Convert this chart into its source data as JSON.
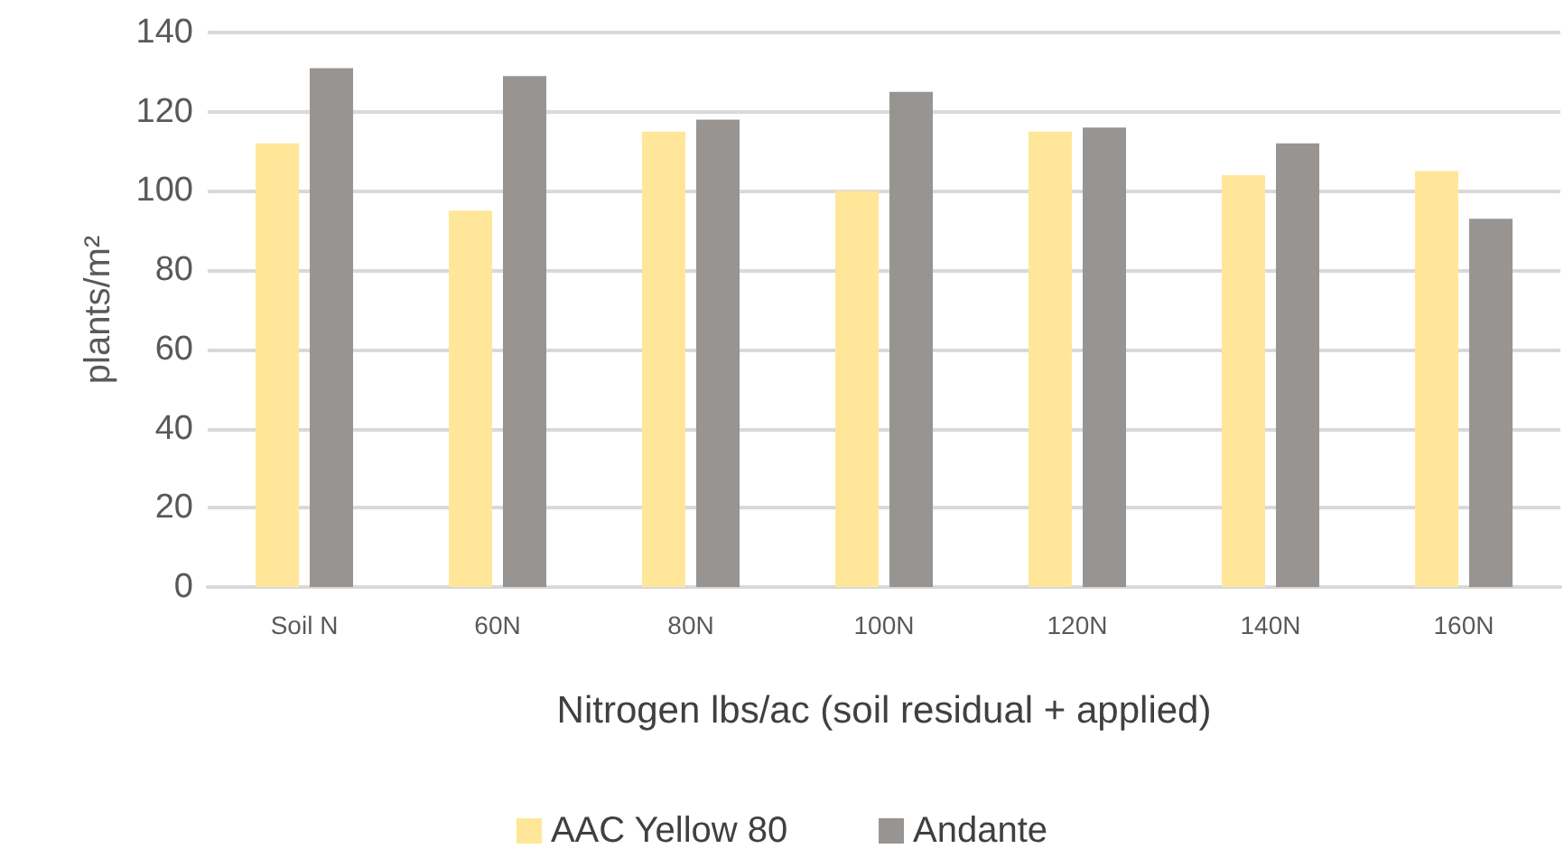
{
  "chart_data": {
    "type": "bar",
    "xlabel": "Nitrogen lbs/ac (soil residual + applied)",
    "ylabel": "plants/m²",
    "categories": [
      "Soil N",
      "60N",
      "80N",
      "100N",
      "120N",
      "140N",
      "160N"
    ],
    "series": [
      {
        "name": "AAC Yellow 80",
        "color": "#ffe699",
        "values": [
          112,
          95,
          115,
          100,
          115,
          104,
          105
        ]
      },
      {
        "name": "Andante",
        "color": "#989492",
        "values": [
          131,
          129,
          118,
          125,
          116,
          112,
          93
        ]
      }
    ],
    "ylim": [
      0,
      140
    ],
    "yticks": [
      0,
      20,
      40,
      60,
      80,
      100,
      120,
      140
    ],
    "grid": "y",
    "legend": "bottom"
  }
}
